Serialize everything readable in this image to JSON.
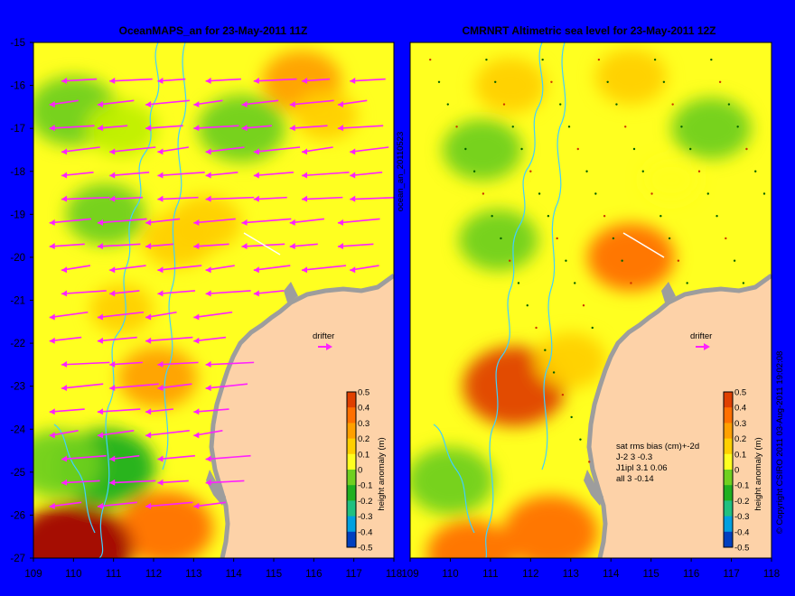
{
  "colors": {
    "background": "#0000ff",
    "land": "#fdd2a8",
    "coast": "#9d9d9d",
    "contour": "#40d0ff",
    "arrow": "#ff20ff",
    "drifter": "#ff20ff",
    "colorscale": [
      "#000080",
      "#0040c0",
      "#00a0e0",
      "#20c080",
      "#20b020",
      "#70d020",
      "#c0f000",
      "#ffff20",
      "#ffd000",
      "#ffa000",
      "#ff7000",
      "#e04000",
      "#a00000"
    ]
  },
  "left_panel": {
    "title": "OceanMAPS_an for 23-May-2011 11Z",
    "side_label": "ocean_an_20110523",
    "drifter_label": "drifter",
    "colorbar_label": "height anomaly (m)"
  },
  "right_panel": {
    "title": "CMRNRT Altimetric sea level  for 23-May-2011 12Z",
    "drifter_label": "drifter",
    "colorbar_label": "height anomaly (m)",
    "stats": [
      "sat rms bias (cm)+-2d",
      "J-2   3 -0.3",
      "J1ipl 3.1 0.06",
      "all 3 -0.14"
    ]
  },
  "copyright": "© Copyright CSIRO 2011  03-Aug-2011 19:02:08",
  "chart_data": [
    {
      "type": "heatmap",
      "title": "OceanMAPS_an for 23-May-2011 11Z",
      "x_ticks": [
        "109",
        "110",
        "111",
        "112",
        "113",
        "114",
        "115",
        "116",
        "117",
        "118"
      ],
      "y_ticks": [
        "-15",
        "-16",
        "-17",
        "-18",
        "-19",
        "-20",
        "-21",
        "-22",
        "-23",
        "-24",
        "-25",
        "-26",
        "-27"
      ],
      "xlim": [
        109,
        118
      ],
      "ylim": [
        -27,
        -15
      ],
      "colorbar": {
        "label": "height anomaly (m)",
        "ticks": [
          "0.5",
          "0.4",
          "0.3",
          "0.2",
          "0.1",
          "0",
          "-0.1",
          "-0.2",
          "-0.3",
          "-0.4",
          "-0.5"
        ],
        "range": [
          -0.5,
          0.5
        ]
      },
      "anomaly_features": [
        {
          "lon": 110.0,
          "lat": -16.6,
          "value": -0.12
        },
        {
          "lon": 111.2,
          "lat": -17.0,
          "value": 0.0
        },
        {
          "lon": 114.2,
          "lat": -17.0,
          "value": -0.1
        },
        {
          "lon": 115.7,
          "lat": -15.9,
          "value": 0.25
        },
        {
          "lon": 116.3,
          "lat": -16.7,
          "value": 0.15
        },
        {
          "lon": 110.8,
          "lat": -19.0,
          "value": -0.05
        },
        {
          "lon": 112.6,
          "lat": -19.6,
          "value": 0.2
        },
        {
          "lon": 113.3,
          "lat": -19.2,
          "value": 0.2
        },
        {
          "lon": 111.2,
          "lat": -21.2,
          "value": 0.15
        },
        {
          "lon": 112.1,
          "lat": -22.8,
          "value": 0.25
        },
        {
          "lon": 110.8,
          "lat": -24.9,
          "value": -0.18
        },
        {
          "lon": 109.6,
          "lat": -24.8,
          "value": -0.1
        },
        {
          "lon": 112.3,
          "lat": -26.3,
          "value": 0.35
        },
        {
          "lon": 110.0,
          "lat": -26.8,
          "value": 0.5
        }
      ],
      "currents_note": "predominantly westward surface current vectors"
    },
    {
      "type": "heatmap",
      "title": "CMRNRT Altimetric sea level  for 23-May-2011 12Z",
      "x_ticks": [
        "109",
        "110",
        "111",
        "112",
        "113",
        "114",
        "115",
        "116",
        "117",
        "118"
      ],
      "xlim": [
        109,
        118
      ],
      "ylim": [
        -27,
        -15
      ],
      "colorbar": {
        "label": "height anomaly (m)",
        "ticks": [
          "0.5",
          "0.4",
          "0.3",
          "0.2",
          "0.1",
          "0",
          "-0.1",
          "-0.2",
          "-0.3",
          "-0.4",
          "-0.5"
        ],
        "range": [
          -0.5,
          0.5
        ]
      },
      "anomaly_features": [
        {
          "lon": 110.8,
          "lat": -17.5,
          "value": -0.05
        },
        {
          "lon": 111.5,
          "lat": -16.0,
          "value": 0.2
        },
        {
          "lon": 114.5,
          "lat": -15.8,
          "value": 0.2
        },
        {
          "lon": 116.5,
          "lat": -17.0,
          "value": -0.05
        },
        {
          "lon": 115.5,
          "lat": -18.2,
          "value": 0.1
        },
        {
          "lon": 111.2,
          "lat": -19.6,
          "value": -0.05
        },
        {
          "lon": 114.5,
          "lat": -20.0,
          "value": 0.3
        },
        {
          "lon": 111.6,
          "lat": -23.0,
          "value": 0.4
        },
        {
          "lon": 113.0,
          "lat": -22.4,
          "value": 0.2
        },
        {
          "lon": 110.0,
          "lat": -25.2,
          "value": -0.1
        },
        {
          "lon": 112.5,
          "lat": -26.4,
          "value": 0.35
        },
        {
          "lon": 110.5,
          "lat": -26.9,
          "value": 0.3
        }
      ]
    }
  ]
}
